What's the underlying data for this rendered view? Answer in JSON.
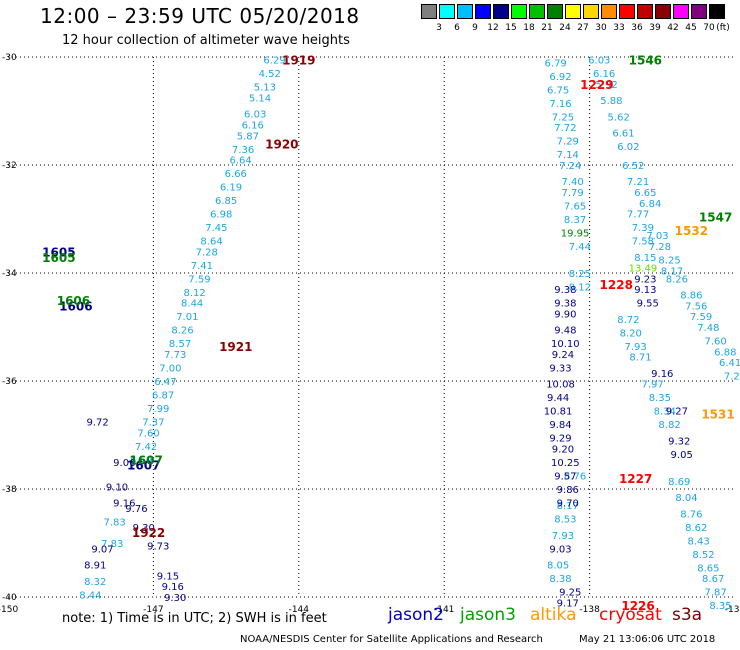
{
  "title": "12:00 – 23:59 UTC 05/20/2018",
  "subtitle": "12 hour collection of altimeter wave heights",
  "legend": {
    "unit": "(ft)",
    "bins": [
      {
        "label": "",
        "color": "#7f7f7f"
      },
      {
        "label": "3",
        "color": "#00ffff"
      },
      {
        "label": "6",
        "color": "#00bfff"
      },
      {
        "label": "9",
        "color": "#0000ff"
      },
      {
        "label": "12",
        "color": "#00008b"
      },
      {
        "label": "15",
        "color": "#00ff00"
      },
      {
        "label": "18",
        "color": "#00c000"
      },
      {
        "label": "21",
        "color": "#008000"
      },
      {
        "label": "24",
        "color": "#ffff00"
      },
      {
        "label": "27",
        "color": "#ffd700"
      },
      {
        "label": "30",
        "color": "#ff8c00"
      },
      {
        "label": "33",
        "color": "#ff0000"
      },
      {
        "label": "36",
        "color": "#c00000"
      },
      {
        "label": "39",
        "color": "#8b0000"
      },
      {
        "label": "42",
        "color": "#ff00ff"
      },
      {
        "label": "45",
        "color": "#800080"
      },
      {
        "label": "70",
        "color": "#000000"
      }
    ]
  },
  "note": "note:  1) Time is in UTC; 2) SWH is in feet",
  "satellites": [
    {
      "name": "jason2",
      "color": "#0000cc"
    },
    {
      "name": "jason3",
      "color": "#00a000"
    },
    {
      "name": "altika",
      "color": "#ff9900"
    },
    {
      "name": "cryosat",
      "color": "#ff0000"
    },
    {
      "name": "s3a",
      "color": "#7a0000"
    }
  ],
  "credit": "NOAA/NESDIS Center for Satellite Applications and Research",
  "updated": "May 21 13:06:06 UTC 2018",
  "chart_data": {
    "type": "scatter",
    "xlabel": "",
    "ylabel": "",
    "xlim": [
      -150,
      -135
    ],
    "ylim": [
      -40,
      -30
    ],
    "xticks": [
      -150,
      -147,
      -144,
      -141,
      -138
    ],
    "xtick_labels": [
      "-150",
      "-147",
      "-144",
      "-141",
      "-138"
    ],
    "yticks": [
      -30,
      -32,
      -34,
      -36,
      -38,
      -40
    ],
    "ytick_labels": [
      "-30",
      "-32",
      "-34",
      "-36",
      "-38",
      "-40"
    ],
    "grid": true,
    "colors": {
      "cyan": "#1aa6e6",
      "navy": "#00008b",
      "green": "#008000",
      "red": "#ff0000",
      "darkred": "#8b0000",
      "orange": "#ff9900",
      "lime": "#66dd00"
    },
    "series": [
      {
        "color": "cyan",
        "points": [
          [
            -144.5,
            -30.05,
            "6.29"
          ],
          [
            -144.6,
            -30.3,
            "4.52"
          ],
          [
            -144.7,
            -30.55,
            "5.13"
          ],
          [
            -144.8,
            -30.75,
            "5.14"
          ],
          [
            -144.9,
            -31.05,
            "6.03"
          ],
          [
            -144.95,
            -31.25,
            "6.16"
          ],
          [
            -145.05,
            -31.45,
            "5.87"
          ],
          [
            -145.15,
            -31.7,
            "7.36"
          ],
          [
            -145.2,
            -31.9,
            "6.64"
          ],
          [
            -145.3,
            -32.15,
            "6.66"
          ],
          [
            -145.4,
            -32.4,
            "6.19"
          ],
          [
            -145.5,
            -32.65,
            "6.85"
          ],
          [
            -145.6,
            -32.9,
            "6.98"
          ],
          [
            -145.7,
            -33.15,
            "7.45"
          ],
          [
            -145.8,
            -33.4,
            "8.64"
          ],
          [
            -145.9,
            -33.6,
            "7.28"
          ],
          [
            -146.0,
            -33.85,
            "7.41"
          ],
          [
            -146.05,
            -34.1,
            "7.59"
          ],
          [
            -146.15,
            -34.35,
            "8.12"
          ],
          [
            -146.2,
            -34.55,
            "8.44"
          ],
          [
            -146.3,
            -34.8,
            "7.01"
          ],
          [
            -146.4,
            -35.05,
            "8.26"
          ],
          [
            -146.45,
            -35.3,
            "8.57"
          ],
          [
            -146.55,
            -35.5,
            "7.73"
          ],
          [
            -146.65,
            -35.75,
            "7.00"
          ],
          [
            -146.75,
            -36.0,
            "6.47"
          ],
          [
            -146.8,
            -36.25,
            "6.87"
          ],
          [
            -146.9,
            -36.5,
            "7.99"
          ],
          [
            -147.0,
            -36.75,
            "7.37"
          ],
          [
            -147.1,
            -36.95,
            "7.60"
          ],
          [
            -147.15,
            -37.2,
            "7.42"
          ],
          [
            -147.25,
            -37.45,
            "6.69"
          ],
          [
            -147.8,
            -38.6,
            "7.83"
          ],
          [
            -147.85,
            -39.0,
            "7.83"
          ],
          [
            -148.2,
            -39.7,
            "8.32"
          ],
          [
            -148.3,
            -39.95,
            "8.44"
          ],
          [
            -138.7,
            -30.1,
            "6.79"
          ],
          [
            -138.6,
            -30.35,
            "6.92"
          ],
          [
            -138.65,
            -30.6,
            "6.75"
          ],
          [
            -138.6,
            -30.85,
            "7.16"
          ],
          [
            -138.55,
            -31.1,
            "7.25"
          ],
          [
            -138.5,
            -31.3,
            "7.72"
          ],
          [
            -138.45,
            -31.55,
            "7.29"
          ],
          [
            -138.45,
            -31.8,
            "7.14"
          ],
          [
            -138.4,
            -32.0,
            "7.24"
          ],
          [
            -138.35,
            -32.3,
            "7.40"
          ],
          [
            -138.35,
            -32.5,
            "7.79"
          ],
          [
            -138.3,
            -32.75,
            "7.65"
          ],
          [
            -138.3,
            -33.0,
            "8.37"
          ],
          [
            -138.2,
            -33.5,
            "7.44"
          ],
          [
            -138.2,
            -34.0,
            "8.25"
          ],
          [
            -138.2,
            -34.25,
            "8.12"
          ],
          [
            -137.8,
            -30.05,
            "6.03"
          ],
          [
            -137.7,
            -30.3,
            "6.16"
          ],
          [
            -137.65,
            -30.5,
            "5.92"
          ],
          [
            -137.55,
            -30.8,
            "5.88"
          ],
          [
            -137.4,
            -31.1,
            "5.62"
          ],
          [
            -137.3,
            -31.4,
            "6.61"
          ],
          [
            -137.2,
            -31.65,
            "6.02"
          ],
          [
            -137.1,
            -32.0,
            "6.52"
          ],
          [
            -137.0,
            -32.3,
            "7.21"
          ],
          [
            -136.85,
            -32.5,
            "6.65"
          ],
          [
            -136.75,
            -32.7,
            "6.84"
          ],
          [
            -137.0,
            -32.9,
            "7.77"
          ],
          [
            -136.9,
            -33.15,
            "7.39"
          ],
          [
            -136.6,
            -33.3,
            "7.03"
          ],
          [
            -136.9,
            -33.4,
            "7.58"
          ],
          [
            -136.55,
            -33.5,
            "7.28"
          ],
          [
            -136.85,
            -33.7,
            "8.15"
          ],
          [
            -136.35,
            -33.75,
            "8.25"
          ],
          [
            -136.3,
            -33.95,
            "8.17"
          ],
          [
            -136.2,
            -34.1,
            "8.26"
          ],
          [
            -135.9,
            -34.4,
            "8.86"
          ],
          [
            -135.8,
            -34.6,
            "7.56"
          ],
          [
            -135.7,
            -34.8,
            "7.59"
          ],
          [
            -135.55,
            -35.0,
            "7.48"
          ],
          [
            -135.4,
            -35.25,
            "7.60"
          ],
          [
            -135.2,
            -35.45,
            "6.88"
          ],
          [
            -135.1,
            -35.65,
            "6.41"
          ],
          [
            -135.0,
            -35.9,
            "7.24"
          ],
          [
            -137.2,
            -34.85,
            "8.72"
          ],
          [
            -137.15,
            -35.1,
            "8.20"
          ],
          [
            -137.05,
            -35.35,
            "7.93"
          ],
          [
            -136.95,
            -35.55,
            "8.71"
          ],
          [
            -136.7,
            -36.05,
            "7.97"
          ],
          [
            -136.55,
            -36.3,
            "8.35"
          ],
          [
            -136.45,
            -36.55,
            "8.34"
          ],
          [
            -136.35,
            -36.8,
            "8.82"
          ],
          [
            -136.15,
            -37.85,
            "8.69"
          ],
          [
            -136.0,
            -38.15,
            "8.04"
          ],
          [
            -135.9,
            -38.45,
            "8.76"
          ],
          [
            -135.8,
            -38.7,
            "8.62"
          ],
          [
            -135.75,
            -38.95,
            "8.43"
          ],
          [
            -135.65,
            -39.2,
            "8.52"
          ],
          [
            -135.55,
            -39.45,
            "8.65"
          ],
          [
            -135.45,
            -39.65,
            "8.67"
          ],
          [
            -135.4,
            -39.9,
            "7.87"
          ],
          [
            -135.3,
            -40.15,
            "8.35"
          ],
          [
            -138.3,
            -37.75,
            "8.76"
          ],
          [
            -138.45,
            -38.3,
            "8.17"
          ],
          [
            -138.5,
            -38.55,
            "8.53"
          ],
          [
            -138.55,
            -38.85,
            "7.93"
          ],
          [
            -138.65,
            -39.4,
            "8.05"
          ],
          [
            -138.6,
            -39.65,
            "8.38"
          ]
        ]
      },
      {
        "color": "navy",
        "points": [
          [
            -148.15,
            -36.75,
            "9.72"
          ],
          [
            -147.6,
            -37.5,
            "9.06"
          ],
          [
            -147.75,
            -37.95,
            "9.10"
          ],
          [
            -147.6,
            -38.25,
            "9.16"
          ],
          [
            -147.35,
            -38.35,
            "9.76"
          ],
          [
            -147.2,
            -38.7,
            "9.30"
          ],
          [
            -146.9,
            -39.05,
            "9.73"
          ],
          [
            -148.05,
            -39.1,
            "9.07"
          ],
          [
            -148.2,
            -39.4,
            "8.91"
          ],
          [
            -146.7,
            -39.6,
            "9.15"
          ],
          [
            -146.6,
            -39.8,
            "9.16"
          ],
          [
            -146.55,
            -40.0,
            "9.30"
          ],
          [
            -138.5,
            -34.3,
            "9.38"
          ],
          [
            -138.5,
            -34.55,
            "9.38"
          ],
          [
            -138.5,
            -34.75,
            "9.90"
          ],
          [
            -138.5,
            -35.05,
            "9.48"
          ],
          [
            -138.5,
            -35.3,
            "10.10"
          ],
          [
            -138.55,
            -35.5,
            "9.24"
          ],
          [
            -138.6,
            -35.75,
            "9.33"
          ],
          [
            -138.6,
            -36.05,
            "10.08"
          ],
          [
            -138.65,
            -36.3,
            "9.44"
          ],
          [
            -138.65,
            -36.55,
            "10.81"
          ],
          [
            -138.6,
            -36.8,
            "9.84"
          ],
          [
            -138.6,
            -37.05,
            "9.29"
          ],
          [
            -138.55,
            -37.25,
            "9.20"
          ],
          [
            -138.5,
            -37.5,
            "10.25"
          ],
          [
            -138.5,
            -37.75,
            "9.57"
          ],
          [
            -138.45,
            -38.0,
            "9.86"
          ],
          [
            -138.45,
            -38.25,
            "9.70"
          ],
          [
            -138.6,
            -39.1,
            "9.03"
          ],
          [
            -138.4,
            -39.9,
            "9.25"
          ],
          [
            -138.45,
            -40.1,
            "9.17"
          ],
          [
            -136.85,
            -34.1,
            "9.23"
          ],
          [
            -136.85,
            -34.3,
            "9.13"
          ],
          [
            -136.8,
            -34.55,
            "9.55"
          ],
          [
            -136.5,
            -35.85,
            "9.16"
          ],
          [
            -136.2,
            -36.55,
            "9.27"
          ],
          [
            -136.15,
            -37.1,
            "9.32"
          ],
          [
            -136.1,
            -37.35,
            "9.05"
          ]
        ]
      },
      {
        "color": "green",
        "points": [
          [
            -138.3,
            -33.25,
            "19.95"
          ]
        ]
      },
      {
        "color": "lime",
        "points": [
          [
            -136.9,
            -33.9,
            "13.49"
          ]
        ]
      }
    ],
    "time_labels": [
      {
        "x": -144.0,
        "y": -30.05,
        "text": "1919",
        "color": "darkred"
      },
      {
        "x": -144.35,
        "y": -31.6,
        "text": "1920",
        "color": "darkred"
      },
      {
        "x": -145.3,
        "y": -35.35,
        "text": "1921",
        "color": "darkred"
      },
      {
        "x": -147.1,
        "y": -38.8,
        "text": "1922",
        "color": "darkred"
      },
      {
        "x": -148.95,
        "y": -33.6,
        "text": "1605",
        "color": "navy"
      },
      {
        "x": -148.95,
        "y": -33.7,
        "text": "1605",
        "color": "green"
      },
      {
        "x": -148.6,
        "y": -34.6,
        "text": "1606",
        "color": "navy"
      },
      {
        "x": -148.65,
        "y": -34.5,
        "text": "1606",
        "color": "green"
      },
      {
        "x": -147.2,
        "y": -37.55,
        "text": "1607",
        "color": "navy"
      },
      {
        "x": -147.15,
        "y": -37.45,
        "text": "1607",
        "color": "green"
      },
      {
        "x": -137.85,
        "y": -30.5,
        "text": "1229",
        "color": "red"
      },
      {
        "x": -137.45,
        "y": -34.2,
        "text": "1228",
        "color": "red"
      },
      {
        "x": -137.05,
        "y": -37.8,
        "text": "1227",
        "color": "red"
      },
      {
        "x": -137.0,
        "y": -40.15,
        "text": "1226",
        "color": "red"
      },
      {
        "x": -136.85,
        "y": -30.05,
        "text": "1546",
        "color": "green"
      },
      {
        "x": -135.4,
        "y": -32.95,
        "text": "1547",
        "color": "green"
      },
      {
        "x": -135.9,
        "y": -33.2,
        "text": "1532",
        "color": "orange"
      },
      {
        "x": -135.35,
        "y": -36.6,
        "text": "1531",
        "color": "orange"
      }
    ]
  }
}
